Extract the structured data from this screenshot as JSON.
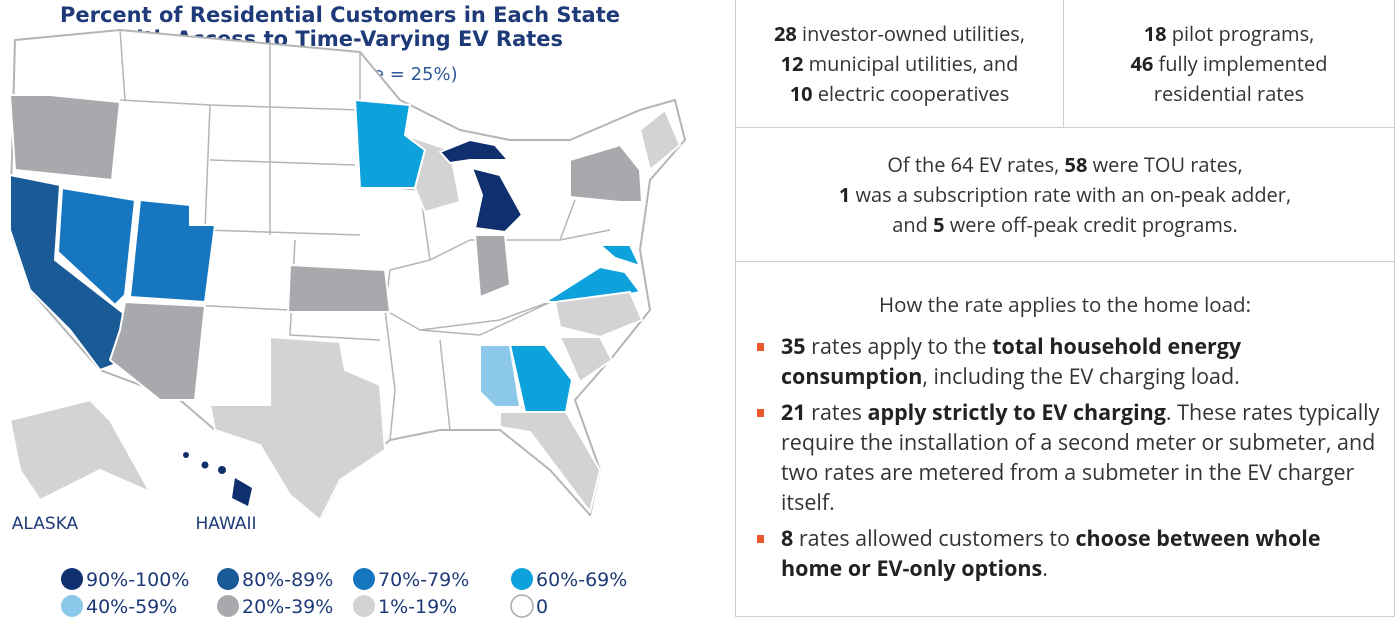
{
  "map": {
    "title_lines": [
      "Percent of Residential Customers in Each State",
      "with Access to Time-Varying EV Rates"
    ],
    "subtitle": "(National Average = 25%)",
    "region_labels": [
      "ALASKA",
      "HAWAII"
    ],
    "legend": [
      {
        "label": "90%-100%",
        "color": "#0f2f6e"
      },
      {
        "label": "80%-89%",
        "color": "#1a5a96"
      },
      {
        "label": "70%-79%",
        "color": "#1676c0"
      },
      {
        "label": "60%-69%",
        "color": "#0ea2dc"
      },
      {
        "label": "40%-59%",
        "color": "#8cc8ea"
      },
      {
        "label": "20%-39%",
        "color": "#a7a9ac"
      },
      {
        "label": "1%-19%",
        "color": "#d3d3d3"
      },
      {
        "label": "0",
        "color": "#ffffff"
      }
    ]
  },
  "stats": {
    "utilities": [
      "28",
      " investor-owned utilities,",
      "12",
      " municipal utilities, and",
      "10",
      " electric cooperatives"
    ],
    "programs": [
      "18",
      " pilot programs,",
      "46",
      " fully implemented",
      "residential rates"
    ],
    "rate_types": [
      "Of the 64 EV rates, ",
      "58",
      " were TOU rates,",
      "1",
      " was a subscription rate with an on-peak adder,",
      "and ",
      "5",
      " were off-peak credit programs."
    ],
    "home_load": {
      "heading": "How the rate applies to the home load:",
      "bullets": [
        [
          "35",
          " rates apply to the ",
          "total household energy consumption",
          ", including the EV charging load."
        ],
        [
          "21",
          " rates ",
          "apply strictly to EV charging",
          ". These rates typically require the installation of a second meter or submeter, and two rates are metered from a submeter in the EV charger itself."
        ],
        [
          "8",
          " rates allowed customers to ",
          "choose between whole home or EV-only options",
          "."
        ]
      ]
    }
  }
}
